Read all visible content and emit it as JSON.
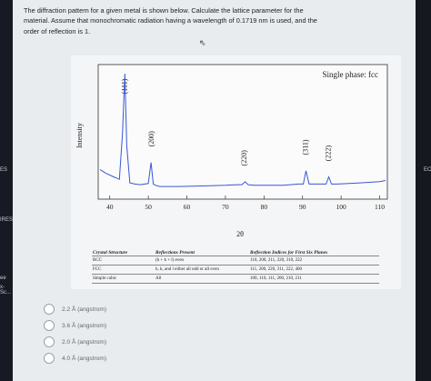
{
  "question": {
    "line1": "The diffraction pattern for a given metal is shown below. Calculate the lattice parameter for the",
    "line2": "material. Assume that monochromatic radiation having a wavelength of 0.1719 nm is used, and the",
    "line3": "order of reflection is 1."
  },
  "left_edge": {
    "labels": [
      "ES",
      "IRES",
      "ee",
      "x-Sc..."
    ]
  },
  "right_edge": {
    "labels": [
      "EC"
    ]
  },
  "chart_data": {
    "type": "line",
    "title": "Single phase: fcc",
    "xlabel": "2θ",
    "ylabel": "Intensity",
    "xlim": [
      37,
      112
    ],
    "xticks": [
      40,
      50,
      60,
      70,
      80,
      90,
      100,
      110
    ],
    "series": [
      {
        "x": [
          37.5,
          39,
          41,
          42.5,
          43.3,
          43.9,
          44.4,
          45.2,
          46.5,
          48,
          50,
          50.7,
          51.3,
          51.9,
          53,
          58,
          65,
          70,
          73,
          74.3,
          75.1,
          75.9,
          77.5,
          85,
          89,
          90.2,
          90.9,
          91.7,
          93,
          96.1,
          96.8,
          97.5,
          99,
          105,
          110,
          111.5
        ],
        "values": [
          0.2,
          0.17,
          0.14,
          0.12,
          0.5,
          1.0,
          0.4,
          0.09,
          0.08,
          0.075,
          0.085,
          0.26,
          0.08,
          0.07,
          0.06,
          0.06,
          0.065,
          0.07,
          0.075,
          0.075,
          0.1,
          0.075,
          0.07,
          0.07,
          0.08,
          0.08,
          0.19,
          0.08,
          0.08,
          0.08,
          0.14,
          0.08,
          0.08,
          0.09,
          0.1,
          0.11
        ]
      }
    ],
    "annotations": [
      {
        "label": "(111)",
        "x": 44
      },
      {
        "label": "(200)",
        "x": 51
      },
      {
        "label": "(220)",
        "x": 75
      },
      {
        "label": "(311)",
        "x": 90.9
      },
      {
        "label": "(222)",
        "x": 96.8
      }
    ]
  },
  "table": {
    "headers": [
      "Crystal Structure",
      "Reflections Present",
      "Reflection Indices for First Six Planes"
    ],
    "rows": [
      [
        "BCC",
        "(h + k + l) even",
        "110, 200, 211, 220, 310, 222"
      ],
      [
        "FCC",
        "h, k, and l either all odd or all even",
        "111, 200, 220, 311, 222, 400"
      ],
      [
        "Simple cubic",
        "All",
        "100, 110, 111, 200, 210, 211"
      ]
    ]
  },
  "options": [
    {
      "label": "2.2 Å (angstrom)"
    },
    {
      "label": "3.6 Å (angstrom)"
    },
    {
      "label": "2.0 Å (angstrom)"
    },
    {
      "label": "4.0 Å (angstrom)"
    }
  ]
}
